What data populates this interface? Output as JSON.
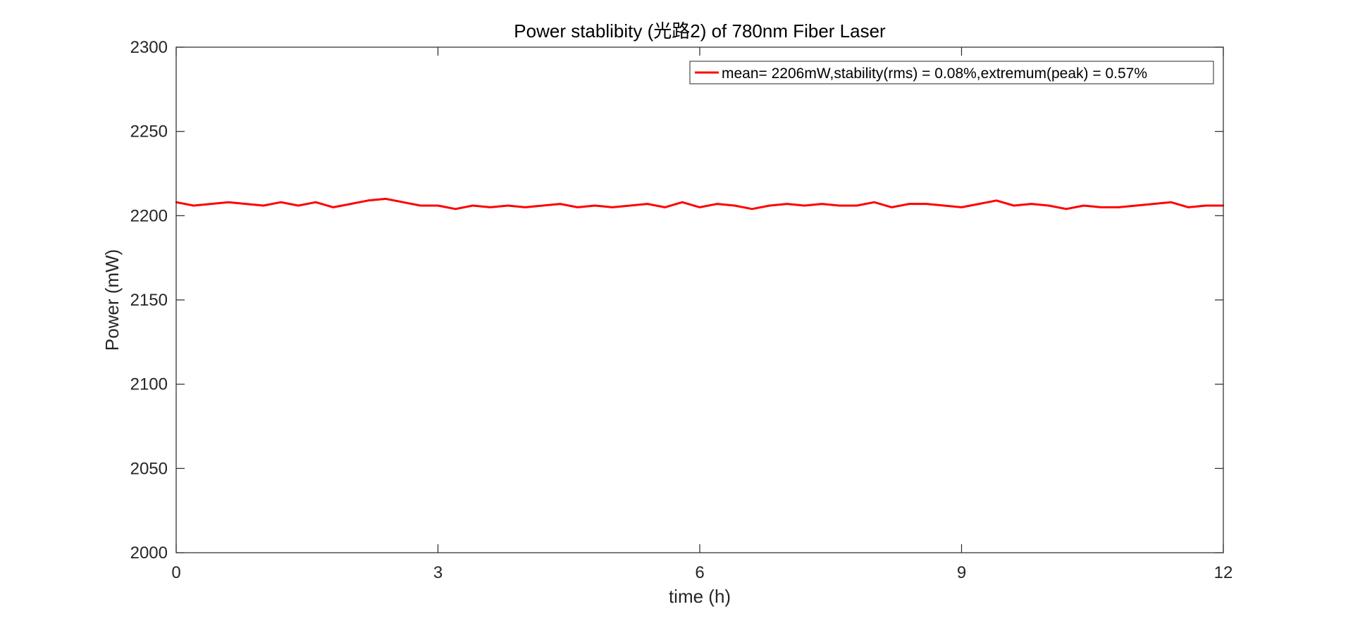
{
  "chart_data": {
    "type": "line",
    "title": "Power stablibity (光路2) of 780nm Fiber Laser",
    "xlabel": "time (h)",
    "ylabel": "Power (mW)",
    "xlim": [
      0,
      12
    ],
    "ylim": [
      2000,
      2300
    ],
    "xticks": [
      0,
      3,
      6,
      9,
      12
    ],
    "yticks": [
      2000,
      2050,
      2100,
      2150,
      2200,
      2250,
      2300
    ],
    "grid": false,
    "legend_position": "top-right",
    "series": [
      {
        "name": "mean= 2206mW,stability(rms) = 0.08%,extremum(peak) = 0.57%",
        "color": "#ff0000",
        "x": [
          0,
          0.2,
          0.4,
          0.6,
          0.8,
          1.0,
          1.2,
          1.4,
          1.6,
          1.8,
          2.0,
          2.2,
          2.4,
          2.6,
          2.8,
          3.0,
          3.2,
          3.4,
          3.6,
          3.8,
          4.0,
          4.2,
          4.4,
          4.6,
          4.8,
          5.0,
          5.2,
          5.4,
          5.6,
          5.8,
          6.0,
          6.2,
          6.4,
          6.6,
          6.8,
          7.0,
          7.2,
          7.4,
          7.6,
          7.8,
          8.0,
          8.2,
          8.4,
          8.6,
          8.8,
          9.0,
          9.2,
          9.4,
          9.6,
          9.8,
          10.0,
          10.2,
          10.4,
          10.6,
          10.8,
          11.0,
          11.2,
          11.4,
          11.6,
          11.8,
          12.0
        ],
        "y": [
          2208,
          2206,
          2207,
          2208,
          2207,
          2206,
          2208,
          2206,
          2208,
          2205,
          2207,
          2209,
          2210,
          2208,
          2206,
          2206,
          2204,
          2206,
          2205,
          2206,
          2205,
          2206,
          2207,
          2205,
          2206,
          2205,
          2206,
          2207,
          2205,
          2208,
          2205,
          2207,
          2206,
          2204,
          2206,
          2207,
          2206,
          2207,
          2206,
          2206,
          2208,
          2205,
          2207,
          2207,
          2206,
          2205,
          2207,
          2209,
          2206,
          2207,
          2206,
          2204,
          2206,
          2205,
          2205,
          2206,
          2207,
          2208,
          2205,
          2206,
          2206
        ]
      }
    ]
  }
}
